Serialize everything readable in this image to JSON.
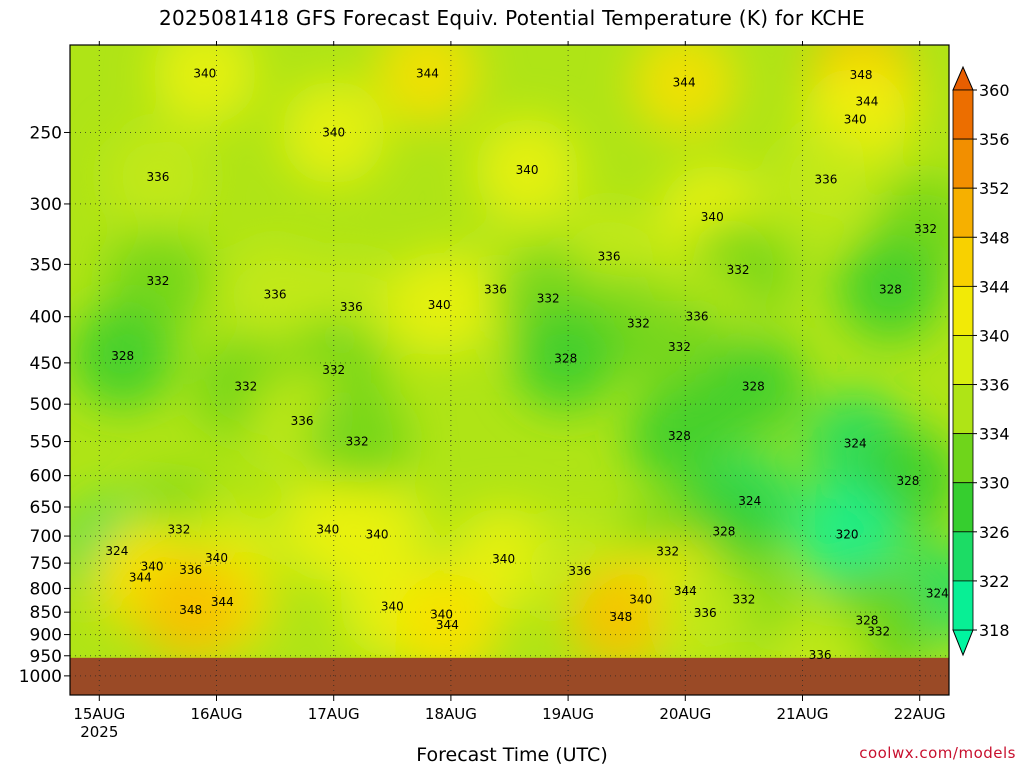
{
  "title": "2025081418 GFS Forecast Equiv. Potential Temperature (K) for KCHE",
  "credit": "coolwx.com/models",
  "chart_data": {
    "type": "heatmap",
    "title": "2025081418 GFS Forecast Equiv. Potential Temperature (K) for KCHE",
    "xlabel": "Forecast Time (UTC)",
    "ylabel": "",
    "y_axis": {
      "ticks": [
        250,
        300,
        350,
        400,
        450,
        500,
        550,
        600,
        650,
        700,
        750,
        800,
        850,
        900,
        950,
        1000
      ],
      "range": [
        200,
        1050
      ],
      "scale": "log-pressure",
      "inverted": true
    },
    "x_axis": {
      "ticks": [
        "15AUG",
        "16AUG",
        "17AUG",
        "18AUG",
        "19AUG",
        "20AUG",
        "21AUG",
        "22AUG"
      ],
      "year_label": "2025",
      "range_days": [
        14.75,
        22.25
      ]
    },
    "grid": true,
    "colorbar": {
      "levels": [
        318,
        322,
        326,
        330,
        334,
        336,
        340,
        344,
        348,
        352,
        356,
        360
      ],
      "label_values": [
        318,
        322,
        326,
        330,
        334,
        336,
        340,
        344,
        348,
        352,
        356,
        360
      ]
    },
    "surface_pressure": 955,
    "contour_labels": [
      {
        "value": 340,
        "t": 15.9,
        "p": 215
      },
      {
        "value": 344,
        "t": 17.8,
        "p": 215
      },
      {
        "value": 344,
        "t": 19.99,
        "p": 220
      },
      {
        "value": 348,
        "t": 21.5,
        "p": 216
      },
      {
        "value": 344,
        "t": 21.55,
        "p": 231
      },
      {
        "value": 340,
        "t": 21.45,
        "p": 242
      },
      {
        "value": 340,
        "t": 17.0,
        "p": 250
      },
      {
        "value": 336,
        "t": 15.5,
        "p": 280
      },
      {
        "value": 340,
        "t": 18.65,
        "p": 275
      },
      {
        "value": 336,
        "t": 21.2,
        "p": 282
      },
      {
        "value": 340,
        "t": 20.23,
        "p": 310
      },
      {
        "value": 332,
        "t": 22.05,
        "p": 320
      },
      {
        "value": 336,
        "t": 19.35,
        "p": 343
      },
      {
        "value": 332,
        "t": 15.5,
        "p": 365
      },
      {
        "value": 332,
        "t": 20.45,
        "p": 355
      },
      {
        "value": 336,
        "t": 16.5,
        "p": 378
      },
      {
        "value": 336,
        "t": 18.38,
        "p": 373
      },
      {
        "value": 332,
        "t": 18.83,
        "p": 382
      },
      {
        "value": 328,
        "t": 21.75,
        "p": 373
      },
      {
        "value": 336,
        "t": 17.15,
        "p": 390
      },
      {
        "value": 340,
        "t": 17.9,
        "p": 388
      },
      {
        "value": 332,
        "t": 19.6,
        "p": 407
      },
      {
        "value": 336,
        "t": 20.1,
        "p": 400
      },
      {
        "value": 328,
        "t": 15.2,
        "p": 442
      },
      {
        "value": 332,
        "t": 19.95,
        "p": 432
      },
      {
        "value": 328,
        "t": 18.98,
        "p": 445
      },
      {
        "value": 332,
        "t": 17.0,
        "p": 458
      },
      {
        "value": 332,
        "t": 16.25,
        "p": 478
      },
      {
        "value": 328,
        "t": 20.58,
        "p": 478
      },
      {
        "value": 336,
        "t": 16.73,
        "p": 522
      },
      {
        "value": 328,
        "t": 19.95,
        "p": 542
      },
      {
        "value": 332,
        "t": 17.2,
        "p": 550
      },
      {
        "value": 324,
        "t": 21.45,
        "p": 553
      },
      {
        "value": 328,
        "t": 21.9,
        "p": 608
      },
      {
        "value": 324,
        "t": 20.55,
        "p": 640
      },
      {
        "value": 332,
        "t": 15.68,
        "p": 688
      },
      {
        "value": 340,
        "t": 16.95,
        "p": 688
      },
      {
        "value": 340,
        "t": 17.37,
        "p": 697
      },
      {
        "value": 328,
        "t": 20.33,
        "p": 692
      },
      {
        "value": 320,
        "t": 21.38,
        "p": 697
      },
      {
        "value": 324,
        "t": 15.15,
        "p": 727
      },
      {
        "value": 332,
        "t": 19.85,
        "p": 728
      },
      {
        "value": 340,
        "t": 16.0,
        "p": 740
      },
      {
        "value": 340,
        "t": 18.45,
        "p": 742
      },
      {
        "value": 340,
        "t": 15.45,
        "p": 757
      },
      {
        "value": 336,
        "t": 15.78,
        "p": 763
      },
      {
        "value": 336,
        "t": 19.1,
        "p": 765
      },
      {
        "value": 344,
        "t": 15.35,
        "p": 778
      },
      {
        "value": 344,
        "t": 20.0,
        "p": 805
      },
      {
        "value": 340,
        "t": 19.62,
        "p": 823
      },
      {
        "value": 332,
        "t": 20.5,
        "p": 823
      },
      {
        "value": 324,
        "t": 22.15,
        "p": 810
      },
      {
        "value": 344,
        "t": 16.05,
        "p": 828
      },
      {
        "value": 348,
        "t": 15.78,
        "p": 845
      },
      {
        "value": 340,
        "t": 17.5,
        "p": 838
      },
      {
        "value": 340,
        "t": 17.92,
        "p": 855
      },
      {
        "value": 348,
        "t": 19.45,
        "p": 860
      },
      {
        "value": 336,
        "t": 20.17,
        "p": 852
      },
      {
        "value": 344,
        "t": 17.97,
        "p": 878
      },
      {
        "value": 328,
        "t": 21.55,
        "p": 868
      },
      {
        "value": 332,
        "t": 21.65,
        "p": 893
      },
      {
        "value": 336,
        "t": 21.15,
        "p": 948
      }
    ]
  }
}
